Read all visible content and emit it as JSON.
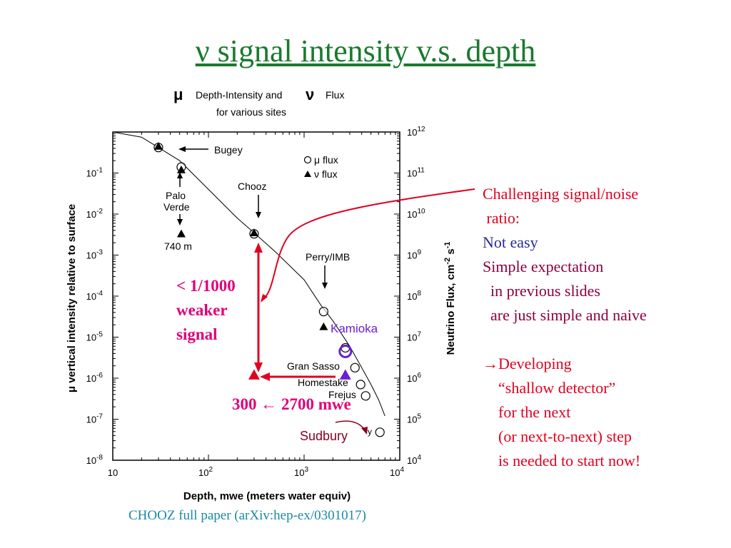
{
  "title": "ν signal intensity v.s. depth",
  "figure_header": {
    "line1_mu": "μ",
    "line1_a": "Depth-Intensity and",
    "line1_nu": "ν",
    "line1_b": "Flux",
    "line2": "for various sites"
  },
  "chart_data": {
    "type": "scatter",
    "x_axis": {
      "label": "Depth, mwe (meters water equiv)",
      "scale": "log",
      "range": [
        10,
        10000
      ],
      "ticks": [
        {
          "v": 10,
          "t": "10"
        },
        {
          "v": 100,
          "t": "10",
          "e": "2"
        },
        {
          "v": 1000,
          "t": "10",
          "e": "3"
        },
        {
          "v": 10000,
          "t": "10",
          "e": "4"
        }
      ]
    },
    "y_left": {
      "label": "μ vertical intensity relative to surface",
      "scale": "log",
      "range": [
        1e-08,
        1
      ],
      "ticks": [
        {
          "v": 0.1,
          "t": "10",
          "e": "-1"
        },
        {
          "v": 0.01,
          "t": "10",
          "e": "-2"
        },
        {
          "v": 0.001,
          "t": "10",
          "e": "-3"
        },
        {
          "v": 0.0001,
          "t": "10",
          "e": "-4"
        },
        {
          "v": 1e-05,
          "t": "10",
          "e": "-5"
        },
        {
          "v": 1e-06,
          "t": "10",
          "e": "-6"
        },
        {
          "v": 1e-07,
          "t": "10",
          "e": "-7"
        },
        {
          "v": 1e-08,
          "t": "10",
          "e": "-8"
        }
      ]
    },
    "y_right": {
      "label": "Neutrino Flux, cm⁻² s⁻¹",
      "label_parts": [
        "Neutrino Flux, cm",
        "-2",
        " s",
        "-1"
      ],
      "scale": "log",
      "range": [
        10000.0,
        1000000000000.0
      ],
      "ticks": [
        {
          "v": 1000000000000.0,
          "t": "10",
          "e": "12"
        },
        {
          "v": 100000000000.0,
          "t": "10",
          "e": "11"
        },
        {
          "v": 10000000000.0,
          "t": "10",
          "e": "10"
        },
        {
          "v": 1000000000.0,
          "t": "10",
          "e": "9"
        },
        {
          "v": 100000000.0,
          "t": "10",
          "e": "8"
        },
        {
          "v": 10000000.0,
          "t": "10",
          "e": "7"
        },
        {
          "v": 1000000.0,
          "t": "10",
          "e": "6"
        },
        {
          "v": 100000.0,
          "t": "10",
          "e": "5"
        },
        {
          "v": 10000.0,
          "t": "10",
          "e": "4"
        }
      ]
    },
    "curve": [
      [
        10,
        1
      ],
      [
        20,
        0.75
      ],
      [
        30,
        0.42
      ],
      [
        50,
        0.2
      ],
      [
        100,
        0.04
      ],
      [
        200,
        0.008
      ],
      [
        300,
        0.0035
      ],
      [
        500,
        0.0012
      ],
      [
        1000,
        0.00025
      ],
      [
        1500,
        6e-05
      ],
      [
        2000,
        2.5e-05
      ],
      [
        3000,
        6e-06
      ],
      [
        4000,
        1.8e-06
      ],
      [
        5000,
        7e-07
      ],
      [
        6000,
        3e-07
      ],
      [
        7000,
        1.2e-07
      ]
    ],
    "series": [
      {
        "name": "μ flux",
        "marker": "circle",
        "points": [
          [
            30,
            0.42
          ],
          [
            52,
            0.14
          ],
          [
            300,
            0.0033
          ],
          [
            1600,
            4.2e-05
          ],
          [
            2700,
            5.5e-06
          ],
          [
            3400,
            1.8e-06
          ],
          [
            3900,
            7e-07
          ],
          [
            4400,
            3.7e-07
          ],
          [
            6200,
            4.8e-08
          ]
        ]
      },
      {
        "name": "ν flux",
        "marker": "triangle",
        "points": [
          [
            30,
            0.45
          ],
          [
            52,
            0.12
          ],
          [
            52,
            0.0033
          ],
          [
            300,
            0.0035
          ],
          [
            1600,
            1.8e-05
          ]
        ]
      }
    ],
    "legend": {
      "position": "top-right",
      "items": [
        "μ flux",
        "ν flux"
      ]
    },
    "site_labels": [
      "Bugey",
      "Palo",
      "Verde",
      "740 m",
      "Chooz",
      "Perry/IMB",
      "Gran Sasso",
      "Homestake",
      "Frejus",
      "y"
    ],
    "highlights": [
      {
        "label": "Kamioka",
        "marker": "circle",
        "color": "#6a1fd0",
        "x": 2700,
        "y": 4.5e-06
      },
      {
        "marker": "triangle",
        "color": "#6a1fd0",
        "x": 2700,
        "y": 1.2e-06
      },
      {
        "marker": "triangle",
        "color": "#e00020",
        "x": 300,
        "y": 1.2e-06
      }
    ],
    "other_labels": [
      "Sudbury"
    ]
  },
  "annotations": {
    "ratio_lines": [
      "< 1/1000",
      "weaker",
      "signal"
    ],
    "depth_range": {
      "a": "300",
      "arrow": "←",
      "b": "2700 mwe"
    }
  },
  "notes": [
    {
      "text": "Challenging signal/noise",
      "color": "#e00020"
    },
    {
      "text": " ratio:",
      "color": "#e00020"
    },
    {
      "text": "Not easy",
      "color": "#2a2a9a"
    },
    {
      "text": "Simple expectation",
      "color": "#8a0040"
    },
    {
      "text": "  in previous slides",
      "color": "#8a0040"
    },
    {
      "text": "  are just simple and naive",
      "color": "#8a0040"
    },
    {
      "text": "",
      "color": "#000000"
    },
    {
      "text": "→Developing",
      "color": "#e00020"
    },
    {
      "text": "    “shallow detector”",
      "color": "#e00020"
    },
    {
      "text": "    for the next",
      "color": "#e00020"
    },
    {
      "text": "    (or next-to-next) step",
      "color": "#e00020"
    },
    {
      "text": "    is needed to start now!",
      "color": "#e00020"
    }
  ],
  "caption": "CHOOZ full paper (arXiv:hep-ex/0301017)",
  "colors": {
    "title": "#1a7a2e",
    "annotation": "#e0007a",
    "arrow": "#e00020",
    "kamioka": "#6a1fd0",
    "sudbury": "#8a0020",
    "caption": "#1a8aa0"
  }
}
